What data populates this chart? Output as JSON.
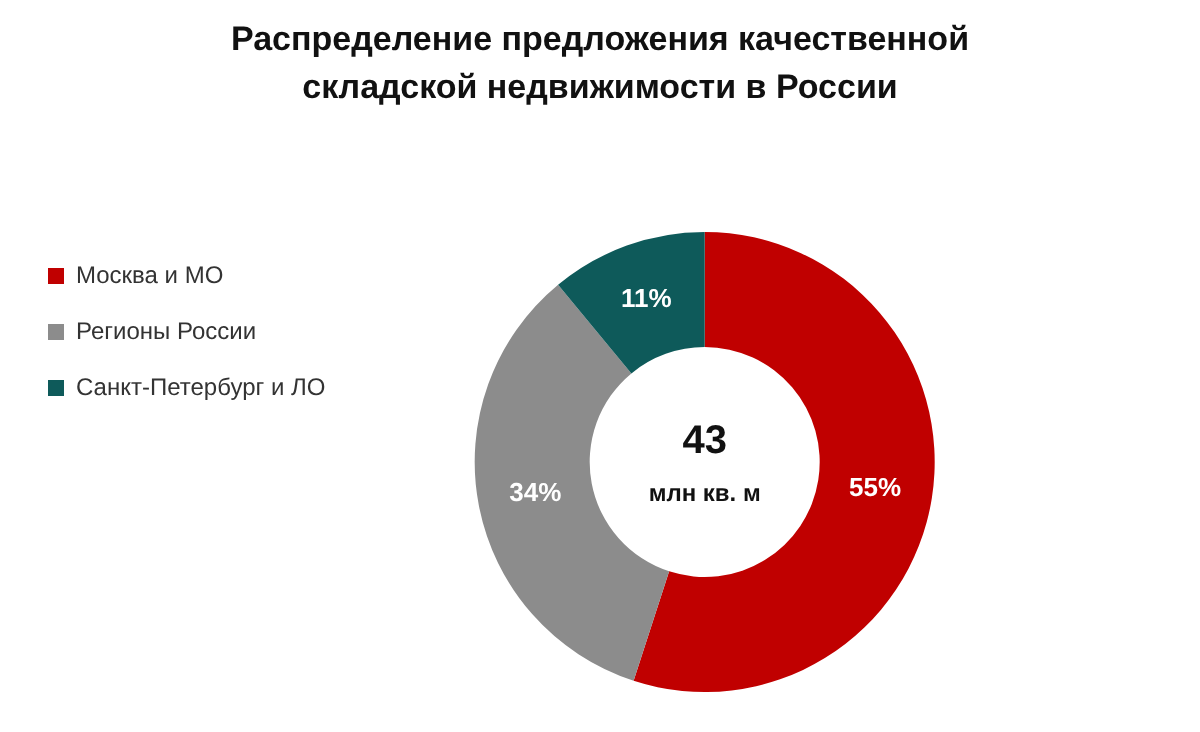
{
  "chart_data": {
    "type": "donut",
    "title": "Распределение предложения качественной складской недвижимости в России",
    "categories": [
      "Москва и МО",
      "Регионы России",
      "Санкт-Петербург и ЛО"
    ],
    "values": [
      55,
      34,
      11
    ],
    "colors": [
      "#c00000",
      "#8c8c8c",
      "#0e5a5a"
    ],
    "value_labels": [
      "55%",
      "34%",
      "11%"
    ],
    "annotations": [
      "43",
      "млн кв. м"
    ],
    "legend": "left"
  }
}
